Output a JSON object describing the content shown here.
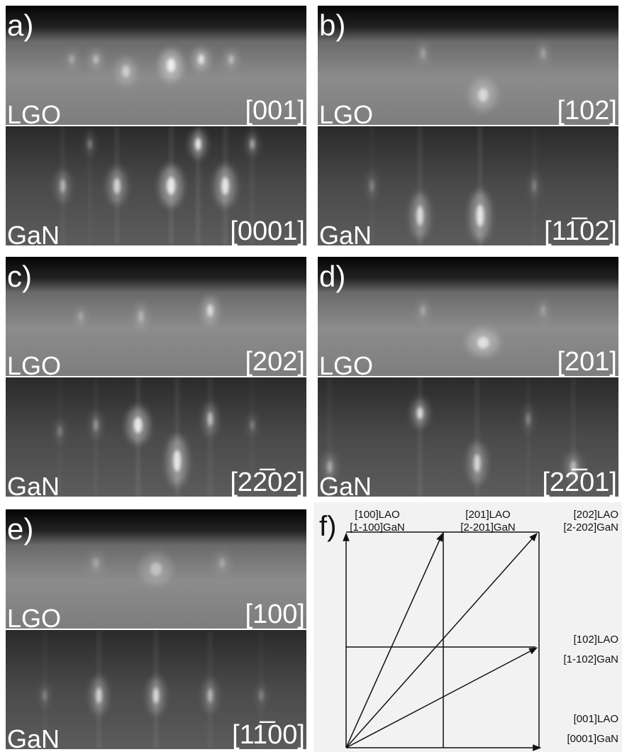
{
  "panels": [
    {
      "label": "a)",
      "top": {
        "material": "LGO",
        "direction": "[001]"
      },
      "bottom": {
        "material": "GaN",
        "direction": "[0001]"
      }
    },
    {
      "label": "b)",
      "top": {
        "material": "LGO",
        "direction": "[102]"
      },
      "bottom": {
        "material": "GaN",
        "direction": "[11̅02]"
      }
    },
    {
      "label": "c)",
      "top": {
        "material": "LGO",
        "direction": "[202]"
      },
      "bottom": {
        "material": "GaN",
        "direction": "[22̅02]"
      }
    },
    {
      "label": "d)",
      "top": {
        "material": "LGO",
        "direction": "[201]"
      },
      "bottom": {
        "material": "GaN",
        "direction": "[22̅01]"
      }
    },
    {
      "label": "e)",
      "top": {
        "material": "LGO",
        "direction": "[100]"
      },
      "bottom": {
        "material": "GaN",
        "direction": "[11̅00]"
      }
    }
  ],
  "diagram": {
    "label": "f)",
    "labels": [
      {
        "lines": [
          "[100]LAO",
          "[1-100]GaN"
        ]
      },
      {
        "lines": [
          "[201]LAO",
          "[2-201]GaN"
        ]
      },
      {
        "lines": [
          "[202]LAO",
          "[2-202]GaN"
        ]
      },
      {
        "lines": [
          "[102]LAO",
          "[1-102]GaN"
        ]
      },
      {
        "lines": [
          "[001]LAO",
          "[0001]GaN"
        ]
      }
    ]
  }
}
